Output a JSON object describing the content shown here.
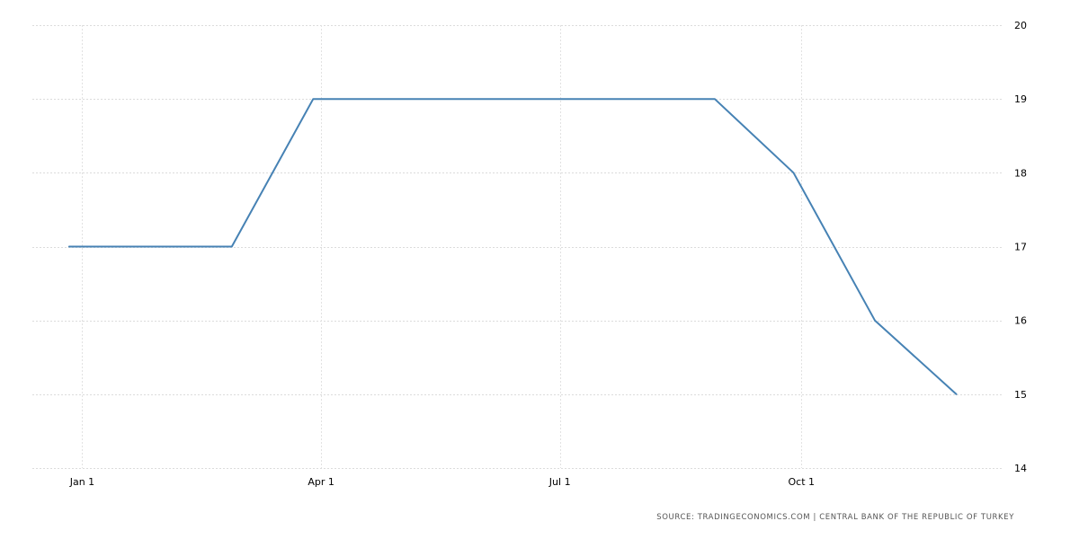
{
  "chart_data": {
    "type": "line",
    "title": "",
    "xlabel": "",
    "ylabel": "",
    "x": [
      "2019-12-27",
      "2020-02-27",
      "2020-03-29",
      "2020-08-29",
      "2020-09-28",
      "2020-10-29",
      "2020-11-29"
    ],
    "series": [
      {
        "values": [
          17,
          17,
          19,
          19,
          18,
          16,
          15
        ],
        "color": "#4682b4"
      }
    ],
    "x_ticks": [
      {
        "date": "2020-01-01",
        "label": "Jan 1"
      },
      {
        "date": "2020-04-01",
        "label": "Apr 1"
      },
      {
        "date": "2020-07-01",
        "label": "Jul 1"
      },
      {
        "date": "2020-10-01",
        "label": "Oct 1"
      }
    ],
    "xlim": [
      "2019-12-13",
      "2020-12-17"
    ],
    "y_ticks": [
      14,
      15,
      16,
      17,
      18,
      19,
      20
    ],
    "ylim": [
      14,
      20
    ],
    "y_axis_side": "right",
    "grid": true
  },
  "footer": {
    "source": "SOURCE: TRADINGECONOMICS.COM | CENTRAL BANK OF THE REPUBLIC OF TURKEY"
  }
}
